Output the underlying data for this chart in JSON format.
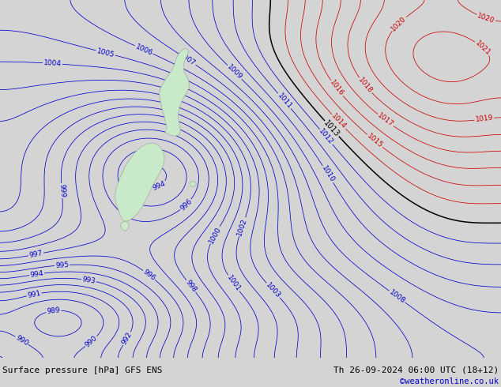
{
  "title_left": "Surface pressure [hPa] GFS ENS",
  "title_right": "Th 26-09-2024 06:00 UTC (18+12)",
  "credit": "©weatheronline.co.uk",
  "background_color": "#d4d4d4",
  "fig_width": 6.34,
  "fig_height": 4.9,
  "dpi": 100,
  "pressure_min": 988,
  "pressure_max": 1021,
  "black_contour_value": 1013,
  "font_size_label": 6.5,
  "font_size_bottom": 8.0,
  "land_color": "#c8eac8",
  "land_edge_color": "#a0b0a0",
  "text_color_left": "#000000",
  "text_color_right": "#000000",
  "text_color_credit": "#0000cc",
  "bottom_bar_color": "#c8c8c8"
}
